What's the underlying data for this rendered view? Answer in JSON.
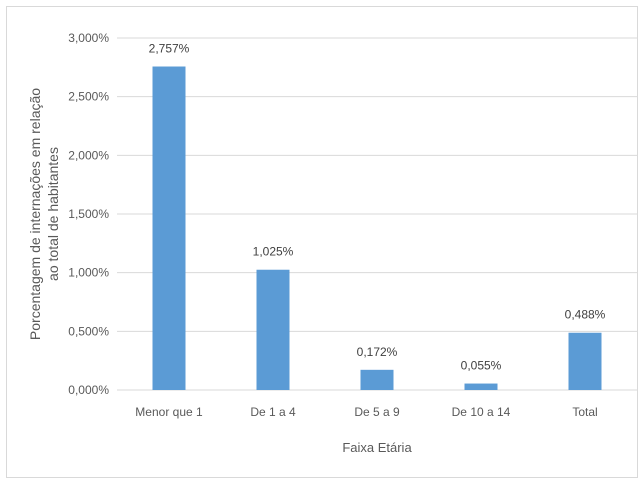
{
  "chart_data": {
    "type": "bar",
    "title": "",
    "xlabel": "Faixa Etária",
    "ylabel_lines": [
      "Porcentagem de internações em relação",
      "ao total de habitantes"
    ],
    "categories": [
      "Menor que 1",
      "De 1 a 4",
      "De 5 a 9",
      "De 10 a 14",
      "Total"
    ],
    "values": [
      2.757,
      1.025,
      0.172,
      0.055,
      0.488
    ],
    "value_labels": [
      "2,757%",
      "1,025%",
      "0,172%",
      "0,055%",
      "0,488%"
    ],
    "ylim": [
      0,
      3.0
    ],
    "yticks": [
      0,
      0.5,
      1.0,
      1.5,
      2.0,
      2.5,
      3.0
    ],
    "ytick_labels": [
      "0,000%",
      "0,500%",
      "1,000%",
      "1,500%",
      "2,000%",
      "2,500%",
      "3,000%"
    ],
    "grid": true,
    "legend": "none",
    "bar_color": "#5b9bd5",
    "grid_color": "#d9d9d9"
  }
}
